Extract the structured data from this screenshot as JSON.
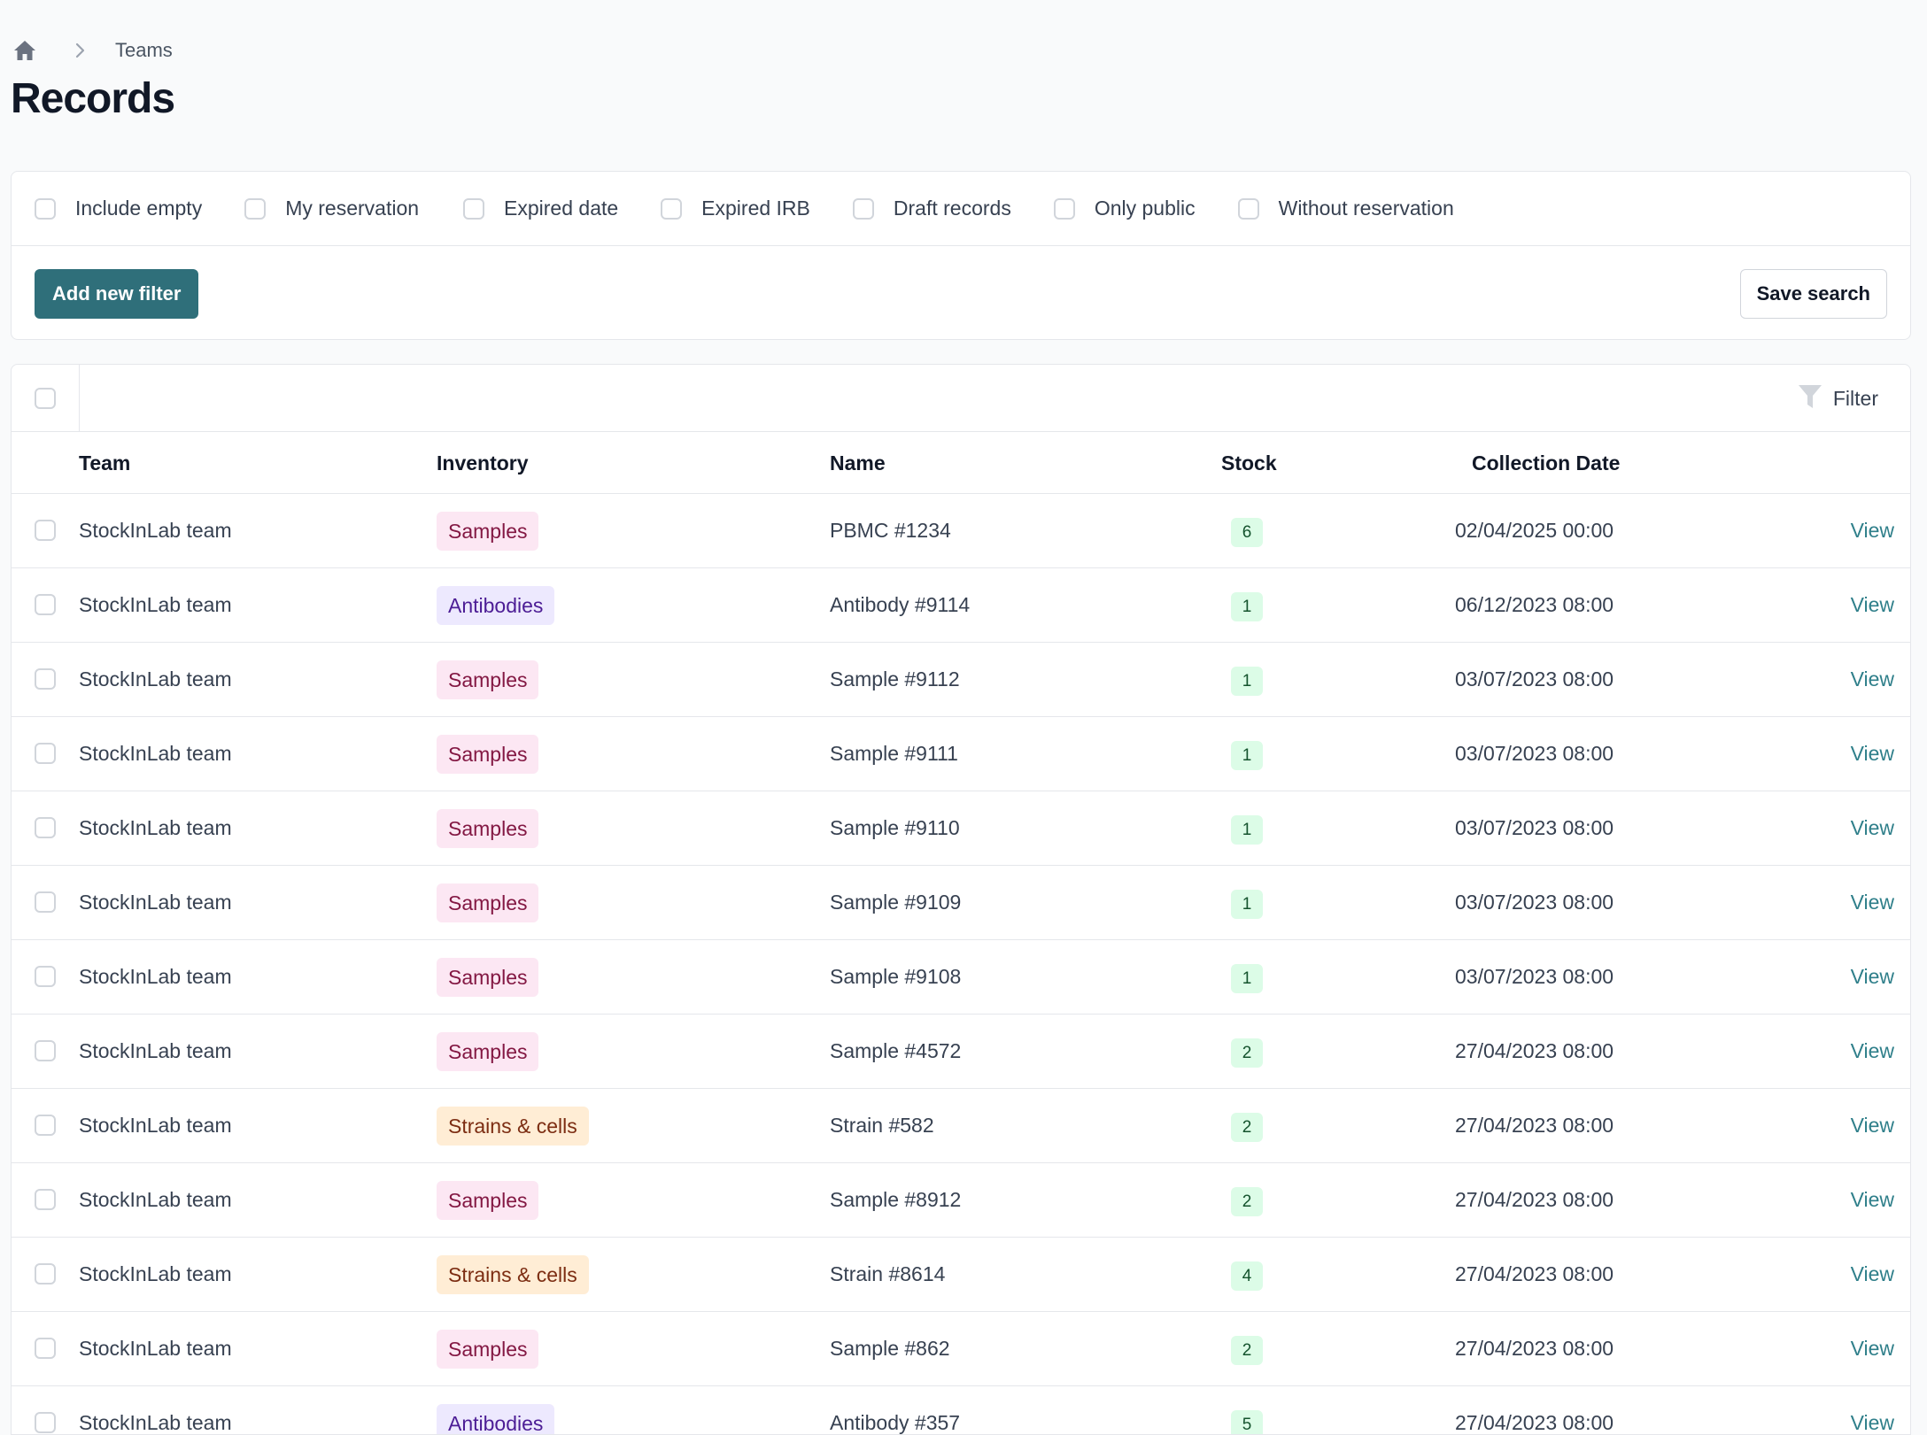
{
  "breadcrumb": {
    "home_icon": "home-icon",
    "items": [
      "Teams"
    ]
  },
  "page_title": "Records",
  "filters": {
    "checkboxes": [
      "Include empty",
      "My reservation",
      "Expired date",
      "Expired IRB",
      "Draft records",
      "Only public",
      "Without reservation"
    ],
    "add_filter_label": "Add new filter",
    "save_search_label": "Save search"
  },
  "table": {
    "filter_label": "Filter",
    "columns": {
      "team": "Team",
      "inventory": "Inventory",
      "name": "Name",
      "stock": "Stock",
      "collection_date": "Collection Date"
    },
    "rows": [
      {
        "team": "StockInLab team",
        "inventory": "Samples",
        "name": "PBMC #1234",
        "stock": "6",
        "date": "02/04/2025 00:00",
        "action": "View"
      },
      {
        "team": "StockInLab team",
        "inventory": "Antibodies",
        "name": "Antibody #9114",
        "stock": "1",
        "date": "06/12/2023 08:00",
        "action": "View"
      },
      {
        "team": "StockInLab team",
        "inventory": "Samples",
        "name": "Sample #9112",
        "stock": "1",
        "date": "03/07/2023 08:00",
        "action": "View"
      },
      {
        "team": "StockInLab team",
        "inventory": "Samples",
        "name": "Sample #9111",
        "stock": "1",
        "date": "03/07/2023 08:00",
        "action": "View"
      },
      {
        "team": "StockInLab team",
        "inventory": "Samples",
        "name": "Sample #9110",
        "stock": "1",
        "date": "03/07/2023 08:00",
        "action": "View"
      },
      {
        "team": "StockInLab team",
        "inventory": "Samples",
        "name": "Sample #9109",
        "stock": "1",
        "date": "03/07/2023 08:00",
        "action": "View"
      },
      {
        "team": "StockInLab team",
        "inventory": "Samples",
        "name": "Sample #9108",
        "stock": "1",
        "date": "03/07/2023 08:00",
        "action": "View"
      },
      {
        "team": "StockInLab team",
        "inventory": "Samples",
        "name": "Sample #4572",
        "stock": "2",
        "date": "27/04/2023 08:00",
        "action": "View"
      },
      {
        "team": "StockInLab team",
        "inventory": "Strains & cells",
        "name": "Strain #582",
        "stock": "2",
        "date": "27/04/2023 08:00",
        "action": "View"
      },
      {
        "team": "StockInLab team",
        "inventory": "Samples",
        "name": "Sample #8912",
        "stock": "2",
        "date": "27/04/2023 08:00",
        "action": "View"
      },
      {
        "team": "StockInLab team",
        "inventory": "Strains & cells",
        "name": "Strain #8614",
        "stock": "4",
        "date": "27/04/2023 08:00",
        "action": "View"
      },
      {
        "team": "StockInLab team",
        "inventory": "Samples",
        "name": "Sample #862",
        "stock": "2",
        "date": "27/04/2023 08:00",
        "action": "View"
      },
      {
        "team": "StockInLab team",
        "inventory": "Antibodies",
        "name": "Antibody #357",
        "stock": "5",
        "date": "27/04/2023 08:00",
        "action": "View"
      }
    ]
  },
  "colors": {
    "primary": "#2f6f7a",
    "link": "#2f7f8a",
    "stock_badge_bg": "#dcfce7",
    "samples_bg": "#fce7f3",
    "antibodies_bg": "#ede9fe",
    "strains_bg": "#ffedd5"
  }
}
